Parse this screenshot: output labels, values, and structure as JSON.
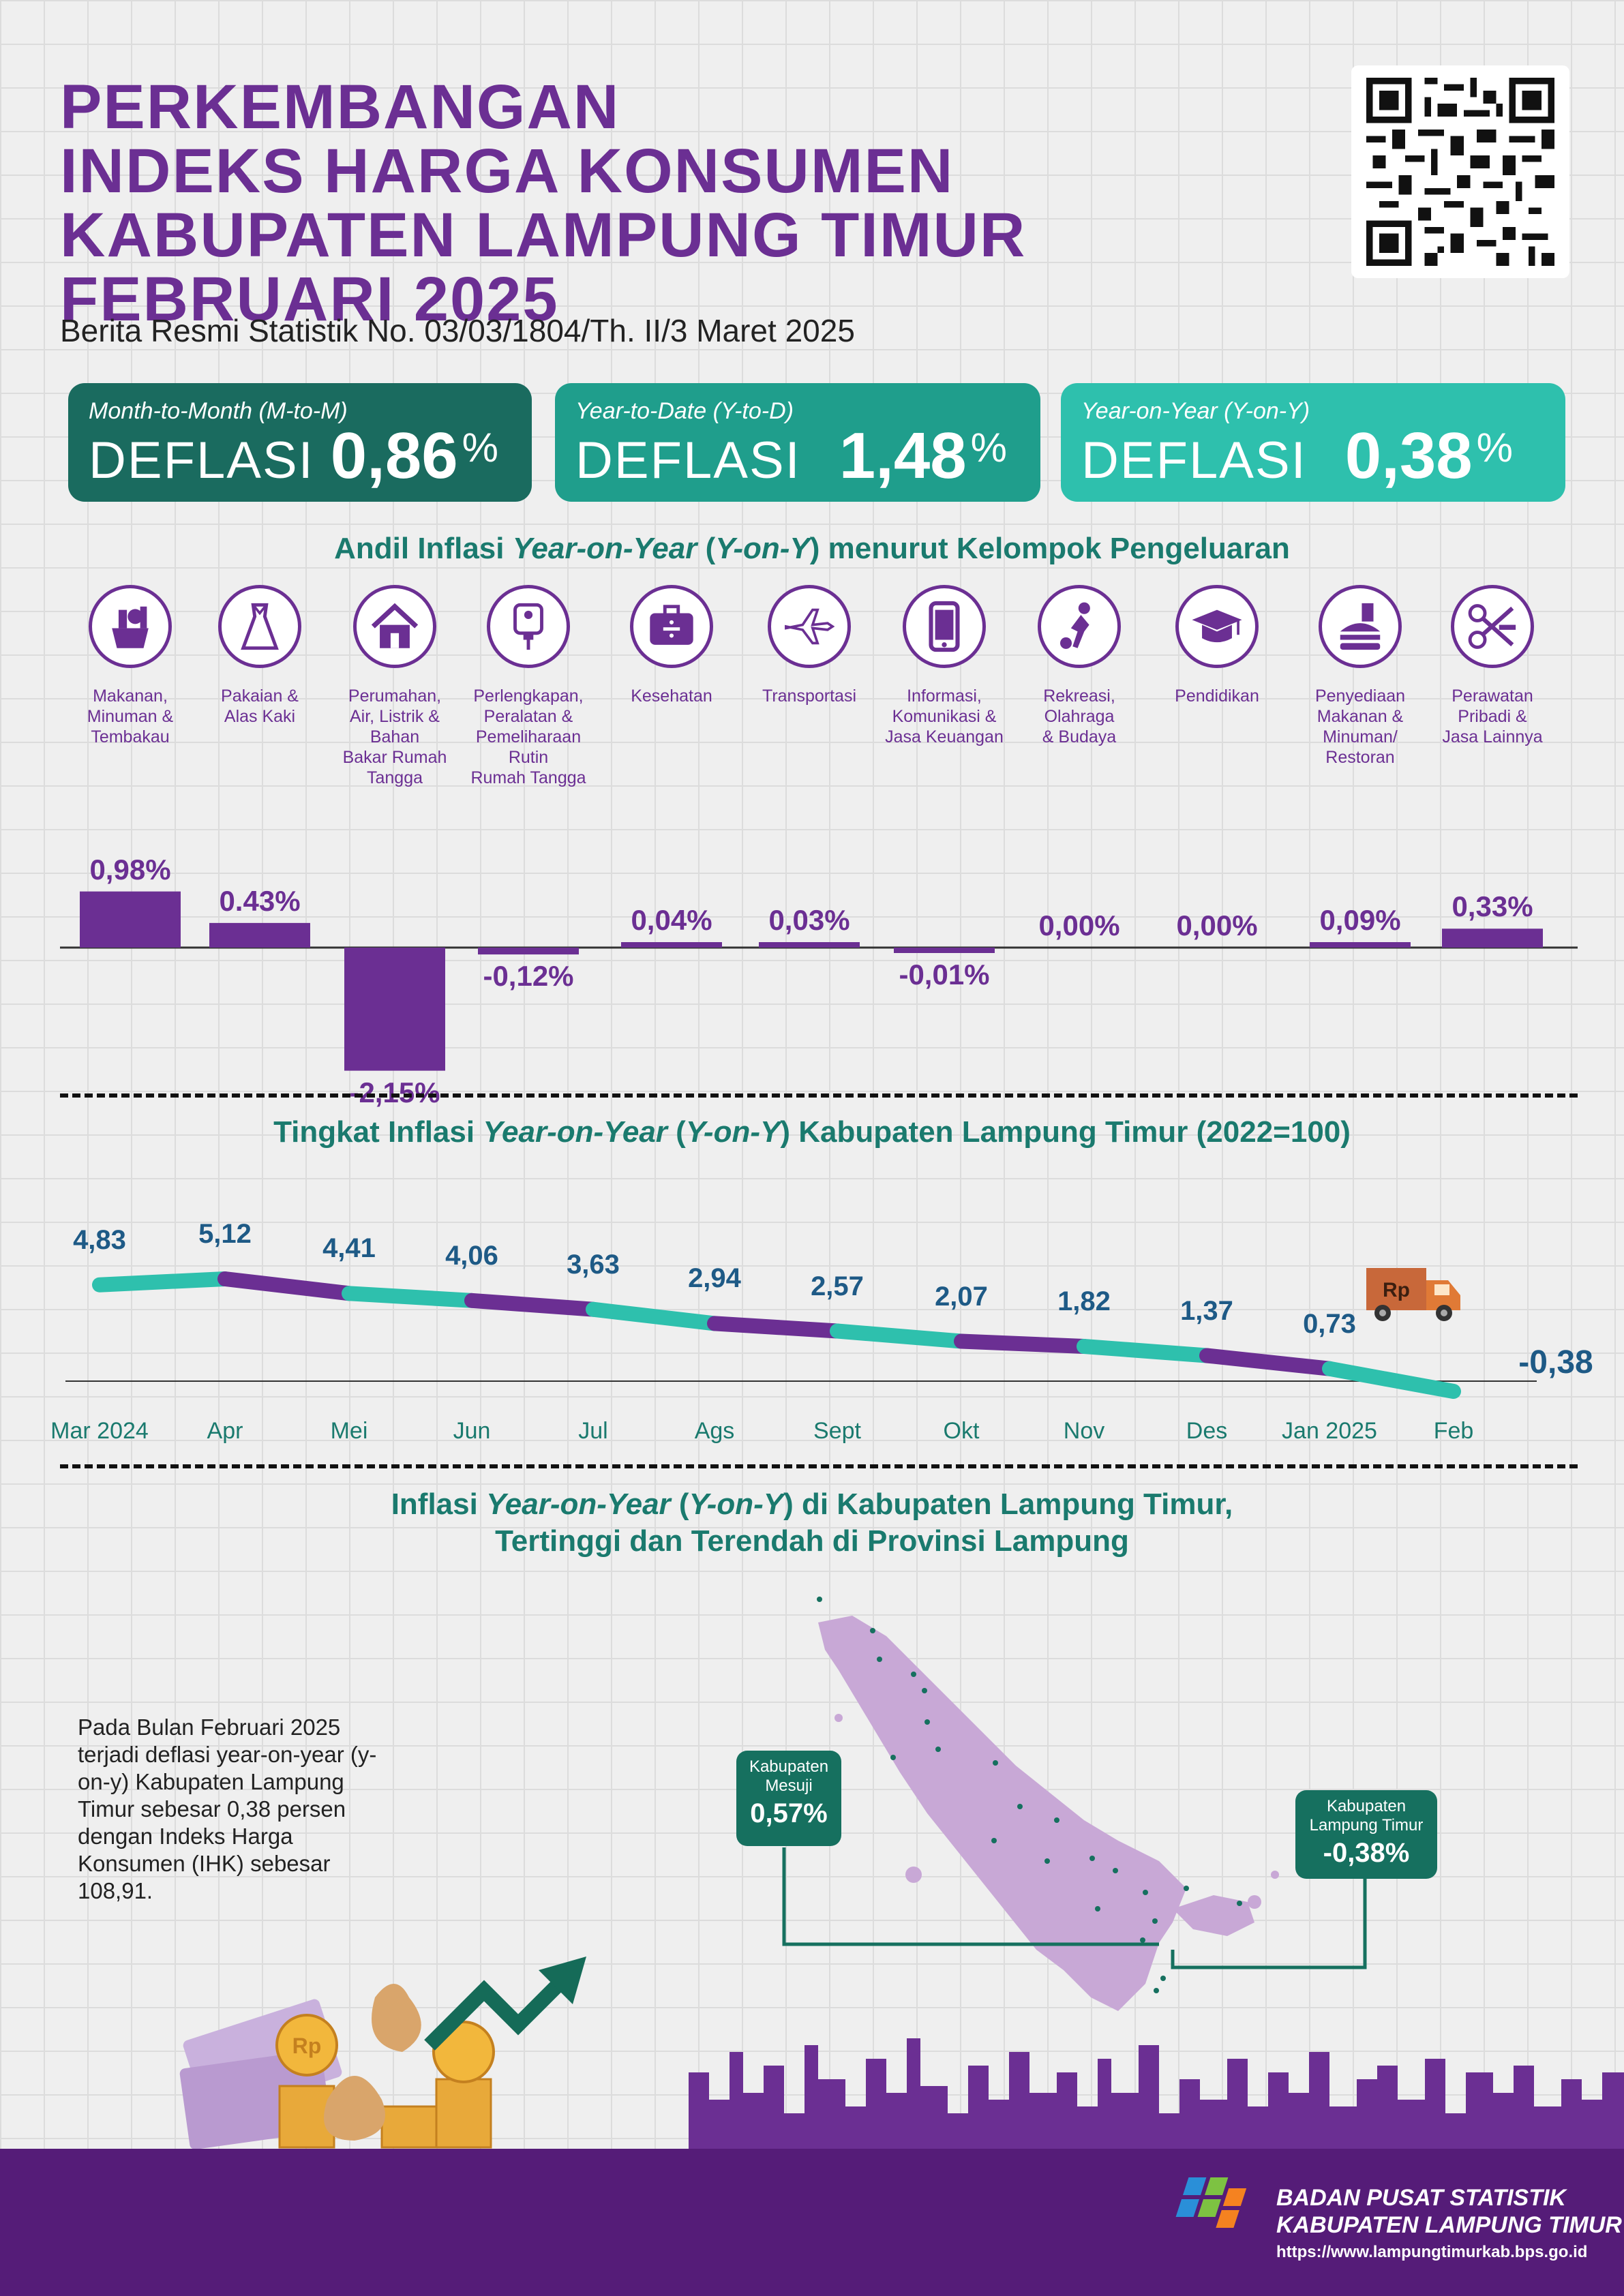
{
  "header": {
    "title_lines": [
      "PERKEMBANGAN",
      "INDEKS HARGA KONSUMEN",
      "KABUPATEN LAMPUNG TIMUR",
      "FEBRUARI 2025"
    ],
    "subtitle": "Berita Resmi Statistik No. 03/03/1804/Th. II/3 Maret 2025"
  },
  "summary": [
    {
      "label": "Month-to-Month (M-to-M)",
      "word": "DEFLASI",
      "value": "0,86",
      "unit": "%",
      "color": "#1a6b5f"
    },
    {
      "label": "Year-to-Date (Y-to-D)",
      "word": "DEFLASI",
      "value": "1,48",
      "unit": "%",
      "color": "#1f9e8c"
    },
    {
      "label": "Year-on-Year (Y-on-Y)",
      "word": "DEFLASI",
      "value": "0,38",
      "unit": "%",
      "color": "#2ec0ad"
    }
  ],
  "andil": {
    "title_pre": "Andil Inflasi ",
    "title_it": "Year-on-Year",
    "title_mid": " (",
    "title_it2": "Y-on-Y",
    "title_post": ") menurut Kelompok Pengeluaran",
    "groups": [
      {
        "name": "Makanan,\nMinuman &\nTembakau",
        "icon": "food-basket-icon",
        "label": "0,98%"
      },
      {
        "name": "Pakaian &\nAlas Kaki",
        "icon": "dress-icon",
        "label": "0.43%"
      },
      {
        "name": "Perumahan,\nAir, Listrik &\nBahan\nBakar Rumah\nTangga",
        "icon": "house-icon",
        "label": "-2,15%"
      },
      {
        "name": "Perlengkapan,\nPeralatan &\nPemeliharaan\nRutin\nRumah Tangga",
        "icon": "plug-icon",
        "label": "-0,12%"
      },
      {
        "name": "Kesehatan",
        "icon": "medical-kit-icon",
        "label": "0,04%"
      },
      {
        "name": "Transportasi",
        "icon": "airplane-icon",
        "label": "0,03%"
      },
      {
        "name": "Informasi,\nKomunikasi &\nJasa Keuangan",
        "icon": "phone-icon",
        "label": "-0,01%"
      },
      {
        "name": "Rekreasi,\nOlahraga\n& Budaya",
        "icon": "soccer-player-icon",
        "label": "0,00%"
      },
      {
        "name": "Pendidikan",
        "icon": "graduation-cap-icon",
        "label": "0,00%"
      },
      {
        "name": "Penyediaan\nMakanan &\nMinuman/\nRestoran",
        "icon": "fastfood-icon",
        "label": "0,09%"
      },
      {
        "name": "Perawatan\nPribadi &\nJasa Lainnya",
        "icon": "scissors-comb-icon",
        "label": "0,33%"
      }
    ]
  },
  "trend": {
    "title_pre": "Tingkat Inflasi ",
    "title_it": "Year-on-Year",
    "title_mid": " (",
    "title_it2": "Y-on-Y",
    "title_post": ") Kabupaten Lampung Timur (2022=100)"
  },
  "chart_data": [
    {
      "type": "bar",
      "categories": [
        "Makanan, Minuman & Tembakau",
        "Pakaian & Alas Kaki",
        "Perumahan, Air, Listrik & Bahan Bakar Rumah Tangga",
        "Perlengkapan, Peralatan & Pemeliharaan Rutin Rumah Tangga",
        "Kesehatan",
        "Transportasi",
        "Informasi, Komunikasi & Jasa Keuangan",
        "Rekreasi, Olahraga & Budaya",
        "Pendidikan",
        "Penyediaan Makanan & Minuman/ Restoran",
        "Perawatan Pribadi & Jasa Lainnya"
      ],
      "values": [
        0.98,
        0.43,
        -2.15,
        -0.12,
        0.04,
        0.03,
        -0.01,
        0.0,
        0.0,
        0.09,
        0.33
      ],
      "title": "Andil Inflasi Year-on-Year (Y-on-Y) menurut Kelompok Pengeluaran",
      "bar_color": "#6b2f93"
    },
    {
      "type": "line",
      "x": [
        "Mar 2024",
        "Apr",
        "Mei",
        "Jun",
        "Jul",
        "Ags",
        "Sept",
        "Okt",
        "Nov",
        "Des",
        "Jan 2025",
        "Feb"
      ],
      "values": [
        4.83,
        5.12,
        4.41,
        4.06,
        3.63,
        2.94,
        2.57,
        2.07,
        1.82,
        1.37,
        0.73,
        -0.38
      ],
      "labels": [
        "4,83",
        "5,12",
        "4,41",
        "4,06",
        "3,63",
        "2,94",
        "2,57",
        "2,07",
        "1,82",
        "1,37",
        "0,73",
        "-0,38"
      ],
      "title": "Tingkat Inflasi Year-on-Year (Y-on-Y) Kabupaten Lampung Timur (2022=100)",
      "segment_colors": [
        "#2ec0ad",
        "#6b2f93"
      ]
    }
  ],
  "map_section": {
    "title_line1_pre": "Inflasi ",
    "title_line1_it": "Year-on-Year",
    "title_line1_mid": " (",
    "title_line1_it2": "Y-on-Y",
    "title_line1_post": ") di Kabupaten Lampung Timur,",
    "title_line2": "Tertinggi dan Terendah di Provinsi Lampung",
    "paragraph": "Pada Bulan Februari 2025 terjadi deflasi year-on-year (y-on-y) Kabupaten Lampung Timur sebesar 0,38 persen dengan Indeks Harga Konsumen (IHK) sebesar 108,91.",
    "callouts": [
      {
        "name": "Kabupaten\nMesuji",
        "value": "0,57%"
      },
      {
        "name": "Kabupaten\nLampung Timur",
        "value": "-0,38%"
      }
    ]
  },
  "truck_label": "Rp",
  "coin_label": "Rp",
  "footer": {
    "org_line1": "BADAN PUSAT STATISTIK",
    "org_line2": "KABUPATEN LAMPUNG TIMUR",
    "url": "https://www.lampungtimurkab.bps.go.id"
  }
}
